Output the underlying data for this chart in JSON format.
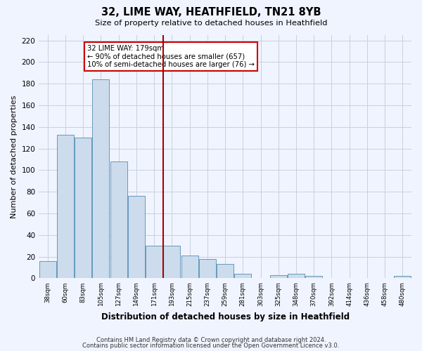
{
  "title": "32, LIME WAY, HEATHFIELD, TN21 8YB",
  "subtitle": "Size of property relative to detached houses in Heathfield",
  "xlabel": "Distribution of detached houses by size in Heathfield",
  "ylabel": "Number of detached properties",
  "bar_labels": [
    "38sqm",
    "60sqm",
    "83sqm",
    "105sqm",
    "127sqm",
    "149sqm",
    "171sqm",
    "193sqm",
    "215sqm",
    "237sqm",
    "259sqm",
    "281sqm",
    "303sqm",
    "325sqm",
    "348sqm",
    "370sqm",
    "392sqm",
    "414sqm",
    "436sqm",
    "458sqm",
    "480sqm"
  ],
  "bar_values": [
    16,
    133,
    130,
    184,
    108,
    76,
    30,
    30,
    21,
    18,
    13,
    4,
    0,
    3,
    4,
    2,
    0,
    0,
    0,
    0,
    2
  ],
  "bar_color": "#ccdcec",
  "bar_edge_color": "#6699bb",
  "vline_bin_index": 7,
  "vline_color": "#aa0000",
  "annotation_title": "32 LIME WAY: 179sqm",
  "annotation_line1": "← 90% of detached houses are smaller (657)",
  "annotation_line2": "10% of semi-detached houses are larger (76) →",
  "annotation_box_facecolor": "#ffffff",
  "annotation_box_edgecolor": "#cc0000",
  "ylim": [
    0,
    225
  ],
  "yticks": [
    0,
    20,
    40,
    60,
    80,
    100,
    120,
    140,
    160,
    180,
    200,
    220
  ],
  "footer1": "Contains HM Land Registry data © Crown copyright and database right 2024.",
  "footer2": "Contains public sector information licensed under the Open Government Licence v3.0.",
  "bin_width": 22,
  "n_bins": 21,
  "bg_color": "#f0f4ff",
  "grid_color": "#c8d0dc"
}
